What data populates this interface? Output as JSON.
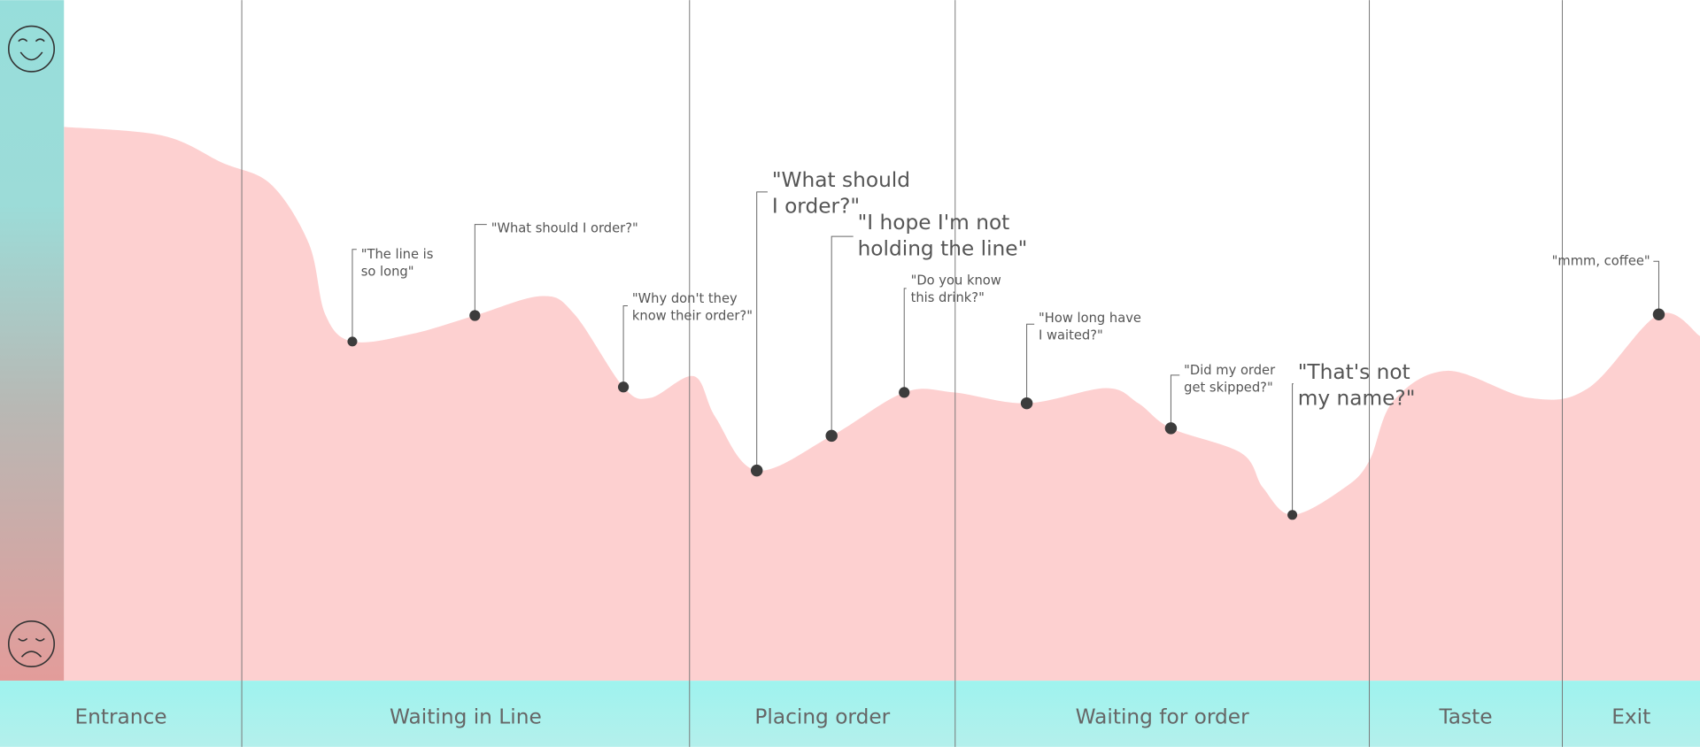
{
  "stages": [
    "Entrance",
    "Waiting in Line",
    "Placing order",
    "Waiting for order",
    "Taste",
    "Exit"
  ],
  "quotes": [
    {
      "lines": [
        "\"The line is",
        "so long\""
      ]
    },
    {
      "lines": [
        "\"What should I order?\""
      ]
    },
    {
      "lines": [
        "\"Why don't they",
        "know their order?\""
      ]
    },
    {
      "lines": [
        "\"What should",
        "I order?\""
      ]
    },
    {
      "lines": [
        "\"I hope I'm not",
        "holding the line\""
      ]
    },
    {
      "lines": [
        "\"Do you know",
        "this drink?\""
      ]
    },
    {
      "lines": [
        "\"How long have",
        "I waited?\""
      ]
    },
    {
      "lines": [
        "\"Did my order",
        "get skipped?\""
      ]
    },
    {
      "lines": [
        "\"That's not",
        "my name?\""
      ]
    },
    {
      "lines": [
        "\"mmm, coffee\""
      ]
    }
  ]
}
